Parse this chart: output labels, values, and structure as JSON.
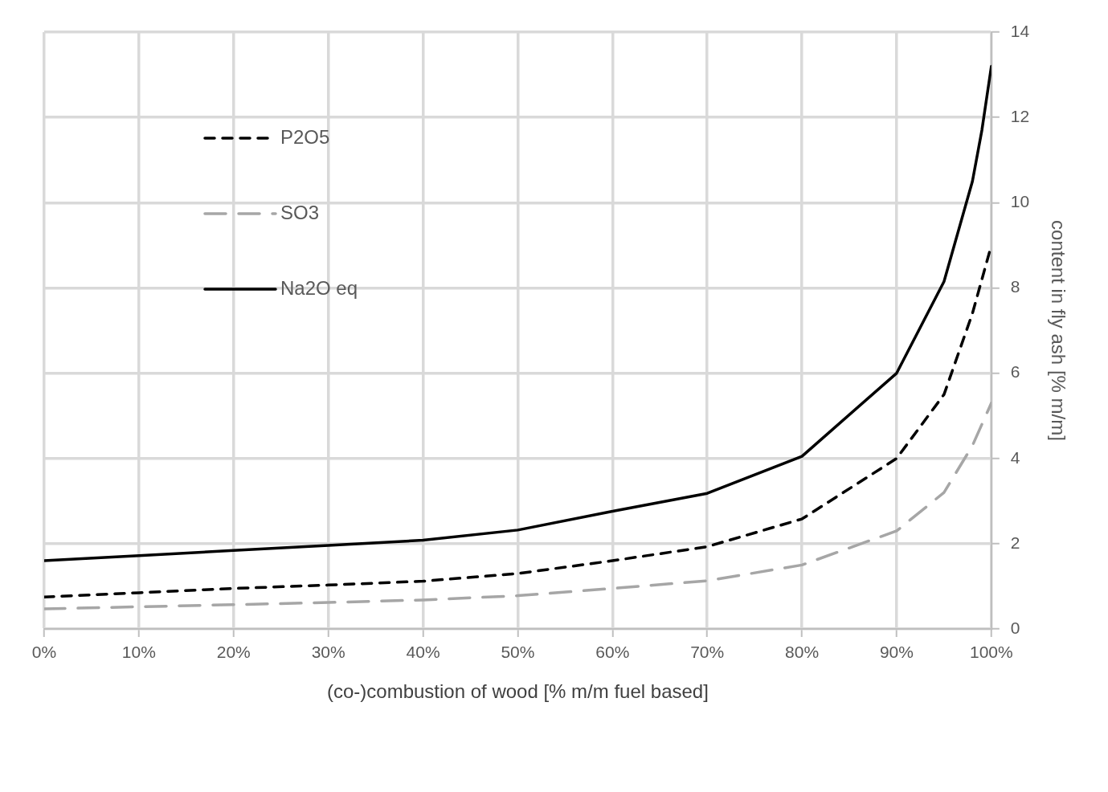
{
  "chart_data": {
    "type": "line",
    "xlabel": "(co-)combustion of wood [% m/m fuel based]",
    "ylabel": "content in fly ash [% m/m]",
    "x": [
      0,
      10,
      20,
      30,
      40,
      50,
      60,
      70,
      80,
      90,
      95,
      98,
      99,
      100
    ],
    "series": [
      {
        "name": "P2O5",
        "color": "#000000",
        "line_style": "dashed",
        "values": [
          0.75,
          0.85,
          0.95,
          1.03,
          1.12,
          1.3,
          1.6,
          1.93,
          2.58,
          4.0,
          5.5,
          7.4,
          8.2,
          9.0
        ]
      },
      {
        "name": "SO3",
        "color": "#a6a6a6",
        "line_style": "dashed",
        "values": [
          0.47,
          0.52,
          0.57,
          0.62,
          0.68,
          0.78,
          0.95,
          1.13,
          1.5,
          2.3,
          3.2,
          4.3,
          4.8,
          5.3
        ]
      },
      {
        "name": "Na2O eq",
        "color": "#000000",
        "line_style": "solid",
        "values": [
          1.6,
          1.72,
          1.84,
          1.96,
          2.08,
          2.32,
          2.76,
          3.18,
          4.05,
          6.0,
          8.15,
          10.5,
          11.7,
          13.2
        ]
      }
    ],
    "xlim": [
      0,
      100
    ],
    "xticks": [
      {
        "value": 0,
        "label": "0%"
      },
      {
        "value": 10,
        "label": "10%"
      },
      {
        "value": 20,
        "label": "20%"
      },
      {
        "value": 30,
        "label": "30%"
      },
      {
        "value": 40,
        "label": "40%"
      },
      {
        "value": 50,
        "label": "50%"
      },
      {
        "value": 60,
        "label": "60%"
      },
      {
        "value": 70,
        "label": "70%"
      },
      {
        "value": 80,
        "label": "80%"
      },
      {
        "value": 90,
        "label": "90%"
      },
      {
        "value": 100,
        "label": "100%"
      }
    ],
    "ylim": [
      0,
      14
    ],
    "yticks": [
      0,
      2,
      4,
      6,
      8,
      10,
      12,
      14
    ],
    "grid": true,
    "legend": "top left",
    "marker": "none"
  }
}
